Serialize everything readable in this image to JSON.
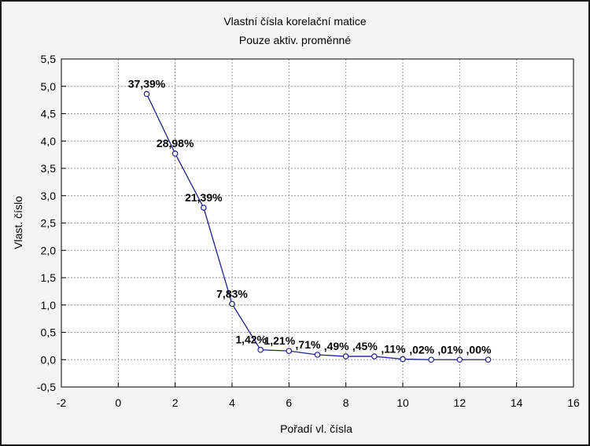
{
  "chart_data": {
    "type": "line",
    "title": "Vlastní čísla korelační matice",
    "subtitle": "Pouze aktiv. proměnné",
    "xlabel": "Pořadí vl. čísla",
    "ylabel": "Vlast. číslo",
    "xlim": [
      -2,
      16
    ],
    "ylim": [
      -0.5,
      5.5
    ],
    "x_ticks": [
      -2,
      0,
      2,
      4,
      6,
      8,
      10,
      12,
      14,
      16
    ],
    "x_tick_labels": [
      "-2",
      "0",
      "2",
      "4",
      "6",
      "8",
      "10",
      "12",
      "14",
      "16"
    ],
    "y_ticks": [
      -0.5,
      0,
      0.5,
      1,
      1.5,
      2,
      2.5,
      3,
      3.5,
      4,
      4.5,
      5,
      5.5
    ],
    "y_tick_labels": [
      "-0,5",
      "0,0",
      "0,5",
      "1,0",
      "1,5",
      "2,0",
      "2,5",
      "3,0",
      "3,5",
      "4,0",
      "4,5",
      "5,0",
      "5,5"
    ],
    "grid": true,
    "series": [
      {
        "x": [
          1,
          2,
          3,
          4,
          5,
          6,
          7,
          8,
          9,
          10,
          11,
          12,
          13
        ],
        "values": [
          4.86,
          3.77,
          2.78,
          1.02,
          0.18,
          0.16,
          0.09,
          0.06,
          0.06,
          0.01,
          0.0,
          0.0,
          0.0
        ],
        "labels": [
          "37,39%",
          "28,98%",
          "21,39%",
          "7,83%",
          "1,42%",
          "1,21%",
          ",71%",
          ",49%",
          ",45%",
          ",11%",
          ",02%",
          ",01%",
          ",00%"
        ]
      }
    ],
    "colors": {
      "line": "#1f1f8f",
      "marker": "#1f1f8f",
      "grid": "#9a9a9a",
      "plot_bg": "#ffffff",
      "frame_bg": "#f4f4f4"
    }
  }
}
